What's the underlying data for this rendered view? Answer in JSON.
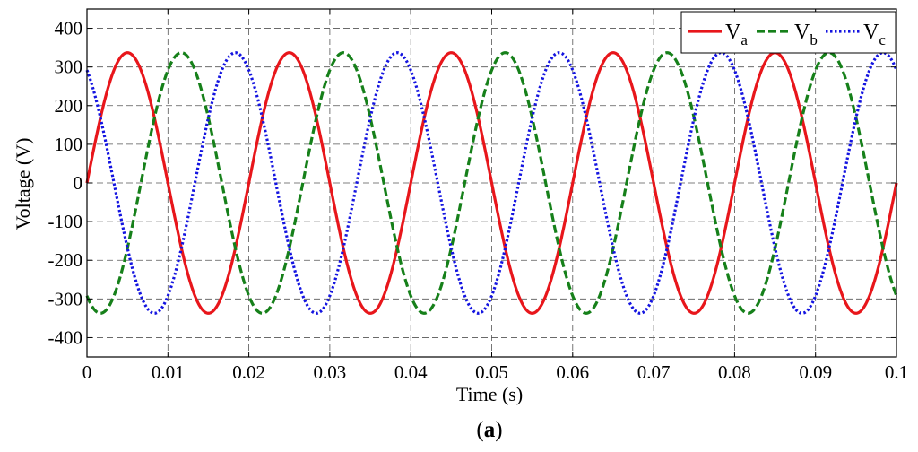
{
  "chart_data": {
    "type": "line",
    "xlabel": "Time (s)",
    "ylabel": "Voltage (V)",
    "panel_label_open": "(",
    "panel_label_letter": "a",
    "panel_label_close": ")",
    "xlim": [
      0,
      0.1
    ],
    "ylim": [
      -450,
      450
    ],
    "xticks": [
      0,
      0.01,
      0.02,
      0.03,
      0.04,
      0.05,
      0.06,
      0.07,
      0.08,
      0.09,
      0.1
    ],
    "xtick_labels": [
      "0",
      "0.01",
      "0.02",
      "0.03",
      "0.04",
      "0.05",
      "0.06",
      "0.07",
      "0.08",
      "0.09",
      "0.1"
    ],
    "yticks": [
      400,
      300,
      200,
      100,
      0,
      -100,
      -200,
      -300,
      -400
    ],
    "ytick_labels": [
      "400",
      "300",
      "200",
      "100",
      "0",
      "-100",
      "-200",
      "-300",
      "-400"
    ],
    "grid": true,
    "legend_position": "top-right",
    "frequency_hz": 50,
    "amplitude_v": 337,
    "series": [
      {
        "name": "V",
        "subscript": "a",
        "color": "#e8161b",
        "dash": "solid",
        "phase_deg": 0
      },
      {
        "name": "V",
        "subscript": "b",
        "color": "#16801a",
        "dash": "dashed",
        "phase_deg": -120
      },
      {
        "name": "V",
        "subscript": "c",
        "color": "#1414e0",
        "dash": "dotted",
        "phase_deg": 120
      }
    ]
  }
}
